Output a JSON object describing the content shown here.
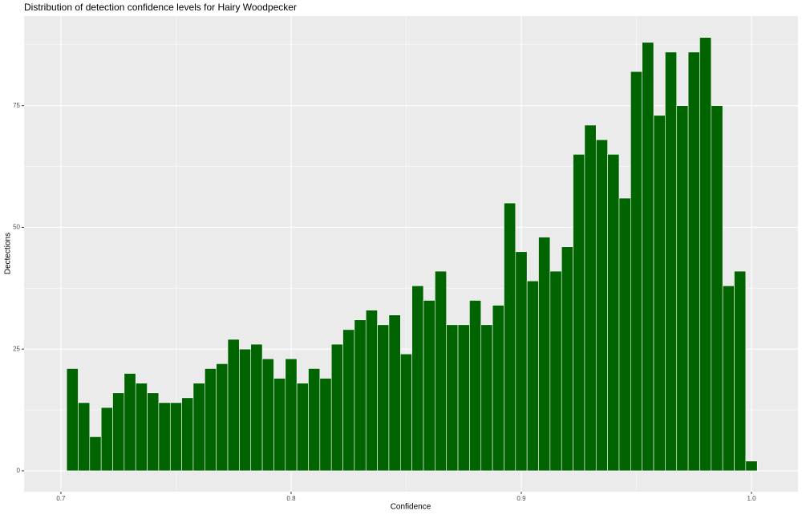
{
  "chart_data": {
    "type": "histogram",
    "title": "Distribution of detection confidence levels for Hairy Woodpecker",
    "x_label": "Confidence",
    "y_label": "Dectections",
    "bins": [
      0.7025,
      0.7075,
      0.7125,
      0.7175,
      0.7225,
      0.7275,
      0.7325,
      0.7375,
      0.7425,
      0.7475,
      0.7525,
      0.7575,
      0.7625,
      0.7675,
      0.7725,
      0.7775,
      0.7825,
      0.7875,
      0.7925,
      0.7975,
      0.8025,
      0.8075,
      0.8125,
      0.8175,
      0.8225,
      0.8275,
      0.8325,
      0.8375,
      0.8425,
      0.8475,
      0.8525,
      0.8575,
      0.8625,
      0.8675,
      0.8725,
      0.8775,
      0.8825,
      0.8875,
      0.8925,
      0.8975,
      0.9025,
      0.9075,
      0.9125,
      0.9175,
      0.9225,
      0.9275,
      0.9325,
      0.9375,
      0.9425,
      0.9475,
      0.9525,
      0.9575,
      0.9625,
      0.9675,
      0.9725,
      0.9775,
      0.9825,
      0.9875,
      0.9925,
      0.9975,
      1.0025
    ],
    "values": [
      21,
      14,
      7,
      13,
      16,
      20,
      18,
      16,
      14,
      14,
      15,
      18,
      21,
      22,
      27,
      25,
      26,
      23,
      19,
      23,
      18,
      21,
      19,
      26,
      29,
      31,
      33,
      30,
      32,
      24,
      38,
      35,
      41,
      30,
      30,
      35,
      30,
      34,
      55,
      45,
      39,
      48,
      41,
      46,
      65,
      71,
      68,
      65,
      56,
      82,
      88,
      73,
      86,
      75,
      86,
      89,
      75,
      38,
      41,
      2
    ],
    "color": "#006400",
    "xlim": [
      0.684,
      1.0202
    ],
    "ylim": [
      -4.3,
      93.4
    ],
    "xticks": [
      0.7,
      0.8,
      0.9,
      {
        "value": 1,
        "label": "1.0"
      }
    ],
    "yticks": [
      0,
      25,
      50,
      75
    ],
    "grid": true
  }
}
